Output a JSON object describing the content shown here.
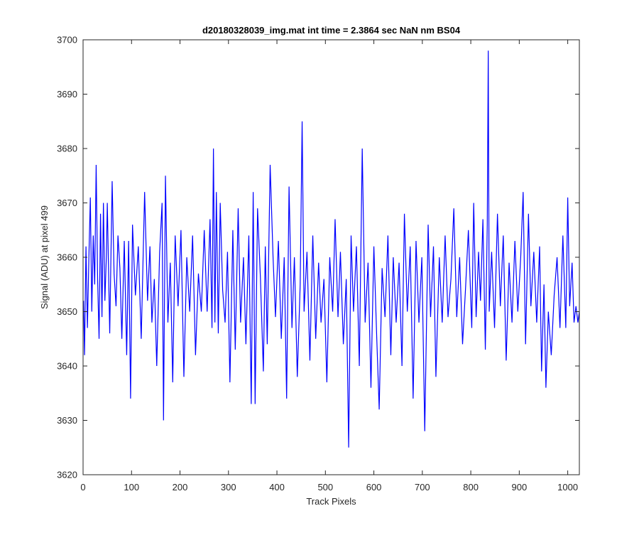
{
  "chart_data": {
    "type": "line",
    "title": "d20180328039_img.mat int time = 2.3864 sec  NaN nm BS04",
    "xlabel": "Track Pixels",
    "ylabel": "Signal (ADU) at pixel 499",
    "xlim": [
      0,
      1024
    ],
    "ylim": [
      3620,
      3700
    ],
    "xticks": [
      "0",
      "100",
      "200",
      "300",
      "400",
      "500",
      "600",
      "700",
      "800",
      "900",
      "1000"
    ],
    "yticks": [
      "3620",
      "3630",
      "3640",
      "3650",
      "3660",
      "3670",
      "3680",
      "3690",
      "3700"
    ],
    "grid": false,
    "legend": false,
    "series": [
      {
        "color": "#0000ff",
        "points": [
          [
            1,
            3652
          ],
          [
            3,
            3642
          ],
          [
            6,
            3662
          ],
          [
            9,
            3647
          ],
          [
            12,
            3660
          ],
          [
            15,
            3671
          ],
          [
            18,
            3650
          ],
          [
            21,
            3664
          ],
          [
            24,
            3655
          ],
          [
            27,
            3677
          ],
          [
            30,
            3656
          ],
          [
            33,
            3645
          ],
          [
            36,
            3668
          ],
          [
            39,
            3649
          ],
          [
            42,
            3670
          ],
          [
            45,
            3652
          ],
          [
            48,
            3660
          ],
          [
            50,
            3670
          ],
          [
            55,
            3646
          ],
          [
            60,
            3674
          ],
          [
            64,
            3657
          ],
          [
            68,
            3651
          ],
          [
            72,
            3664
          ],
          [
            76,
            3658
          ],
          [
            80,
            3645
          ],
          [
            85,
            3663
          ],
          [
            90,
            3642
          ],
          [
            94,
            3663
          ],
          [
            98,
            3634
          ],
          [
            102,
            3666
          ],
          [
            108,
            3653
          ],
          [
            114,
            3662
          ],
          [
            120,
            3645
          ],
          [
            127,
            3672
          ],
          [
            133,
            3652
          ],
          [
            138,
            3662
          ],
          [
            142,
            3648
          ],
          [
            147,
            3656
          ],
          [
            152,
            3640
          ],
          [
            158,
            3661
          ],
          [
            163,
            3670
          ],
          [
            166,
            3630
          ],
          [
            170,
            3675
          ],
          [
            175,
            3648
          ],
          [
            180,
            3659
          ],
          [
            185,
            3637
          ],
          [
            190,
            3664
          ],
          [
            196,
            3651
          ],
          [
            202,
            3665
          ],
          [
            208,
            3638
          ],
          [
            214,
            3660
          ],
          [
            220,
            3650
          ],
          [
            226,
            3664
          ],
          [
            232,
            3642
          ],
          [
            238,
            3657
          ],
          [
            244,
            3650
          ],
          [
            250,
            3665
          ],
          [
            256,
            3650
          ],
          [
            262,
            3667
          ],
          [
            266,
            3647
          ],
          [
            269,
            3680
          ],
          [
            272,
            3648
          ],
          [
            275,
            3672
          ],
          [
            279,
            3646
          ],
          [
            283,
            3670
          ],
          [
            288,
            3654
          ],
          [
            293,
            3648
          ],
          [
            298,
            3661
          ],
          [
            303,
            3637
          ],
          [
            309,
            3665
          ],
          [
            314,
            3643
          ],
          [
            320,
            3669
          ],
          [
            325,
            3648
          ],
          [
            331,
            3660
          ],
          [
            336,
            3644
          ],
          [
            342,
            3664
          ],
          [
            347,
            3633
          ],
          [
            351,
            3672
          ],
          [
            355,
            3633
          ],
          [
            360,
            3669
          ],
          [
            366,
            3656
          ],
          [
            372,
            3639
          ],
          [
            376,
            3662
          ],
          [
            380,
            3644
          ],
          [
            386,
            3677
          ],
          [
            392,
            3660
          ],
          [
            397,
            3649
          ],
          [
            403,
            3663
          ],
          [
            409,
            3645
          ],
          [
            415,
            3660
          ],
          [
            420,
            3634
          ],
          [
            425,
            3673
          ],
          [
            431,
            3647
          ],
          [
            436,
            3660
          ],
          [
            442,
            3638
          ],
          [
            448,
            3655
          ],
          [
            452,
            3685
          ],
          [
            456,
            3650
          ],
          [
            462,
            3661
          ],
          [
            468,
            3641
          ],
          [
            474,
            3664
          ],
          [
            480,
            3645
          ],
          [
            486,
            3659
          ],
          [
            491,
            3648
          ],
          [
            497,
            3656
          ],
          [
            503,
            3637
          ],
          [
            509,
            3660
          ],
          [
            515,
            3650
          ],
          [
            520,
            3667
          ],
          [
            526,
            3649
          ],
          [
            531,
            3661
          ],
          [
            537,
            3644
          ],
          [
            543,
            3656
          ],
          [
            548,
            3625
          ],
          [
            553,
            3664
          ],
          [
            558,
            3650
          ],
          [
            564,
            3662
          ],
          [
            570,
            3640
          ],
          [
            576,
            3680
          ],
          [
            582,
            3648
          ],
          [
            588,
            3659
          ],
          [
            594,
            3636
          ],
          [
            600,
            3662
          ],
          [
            606,
            3645
          ],
          [
            611,
            3632
          ],
          [
            617,
            3658
          ],
          [
            623,
            3649
          ],
          [
            629,
            3664
          ],
          [
            635,
            3642
          ],
          [
            640,
            3660
          ],
          [
            646,
            3648
          ],
          [
            652,
            3659
          ],
          [
            658,
            3640
          ],
          [
            663,
            3668
          ],
          [
            669,
            3650
          ],
          [
            675,
            3662
          ],
          [
            681,
            3634
          ],
          [
            687,
            3663
          ],
          [
            693,
            3648
          ],
          [
            699,
            3660
          ],
          [
            705,
            3628
          ],
          [
            712,
            3666
          ],
          [
            717,
            3649
          ],
          [
            723,
            3662
          ],
          [
            728,
            3638
          ],
          [
            735,
            3660
          ],
          [
            741,
            3648
          ],
          [
            747,
            3664
          ],
          [
            753,
            3649
          ],
          [
            759,
            3656
          ],
          [
            765,
            3669
          ],
          [
            771,
            3649
          ],
          [
            777,
            3660
          ],
          [
            783,
            3644
          ],
          [
            789,
            3654
          ],
          [
            795,
            3665
          ],
          [
            802,
            3647
          ],
          [
            806,
            3670
          ],
          [
            811,
            3649
          ],
          [
            816,
            3661
          ],
          [
            820,
            3652
          ],
          [
            825,
            3667
          ],
          [
            830,
            3643
          ],
          [
            834,
            3666
          ],
          [
            836,
            3698
          ],
          [
            838,
            3650
          ],
          [
            843,
            3661
          ],
          [
            849,
            3647
          ],
          [
            855,
            3668
          ],
          [
            861,
            3651
          ],
          [
            867,
            3664
          ],
          [
            873,
            3641
          ],
          [
            879,
            3659
          ],
          [
            885,
            3648
          ],
          [
            891,
            3663
          ],
          [
            897,
            3650
          ],
          [
            903,
            3660
          ],
          [
            908,
            3672
          ],
          [
            913,
            3644
          ],
          [
            919,
            3668
          ],
          [
            924,
            3651
          ],
          [
            930,
            3661
          ],
          [
            936,
            3648
          ],
          [
            942,
            3662
          ],
          [
            946,
            3639
          ],
          [
            951,
            3655
          ],
          [
            955,
            3636
          ],
          [
            960,
            3650
          ],
          [
            966,
            3642
          ],
          [
            972,
            3653
          ],
          [
            978,
            3660
          ],
          [
            984,
            3647
          ],
          [
            990,
            3664
          ],
          [
            996,
            3647
          ],
          [
            1000,
            3671
          ],
          [
            1004,
            3651
          ],
          [
            1009,
            3659
          ],
          [
            1013,
            3648
          ],
          [
            1017,
            3651
          ],
          [
            1021,
            3648
          ],
          [
            1024,
            3650
          ]
        ]
      }
    ]
  }
}
